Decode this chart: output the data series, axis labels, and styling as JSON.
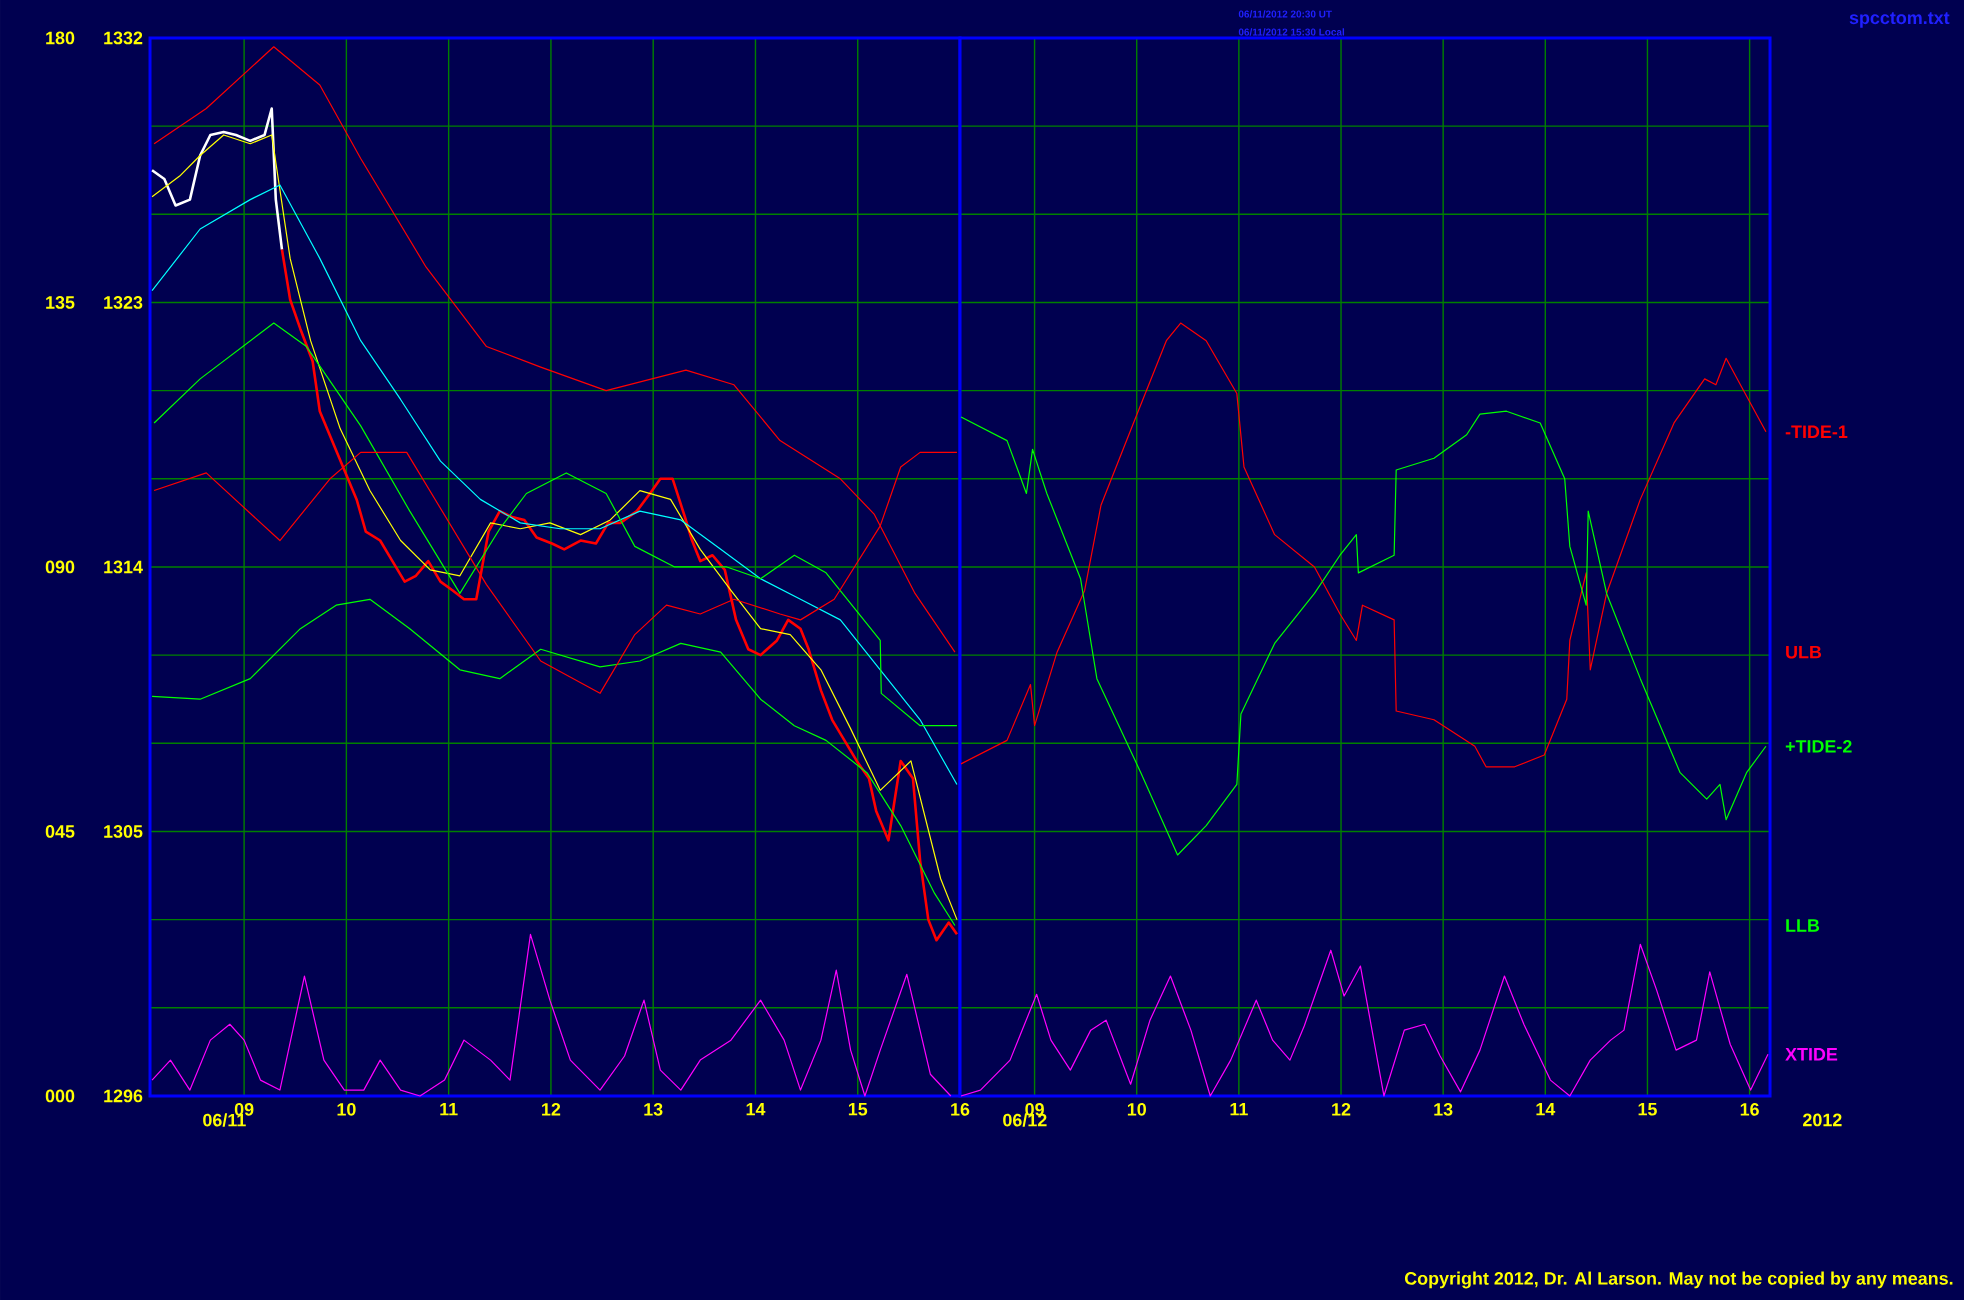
{
  "chart_data": [
    {
      "type": "line",
      "grid": true,
      "xlim": [
        8.08,
        16.0
      ],
      "ylim": [
        1296,
        1332
      ],
      "y2lim": [
        0,
        180
      ],
      "xticks": [
        {
          "value": 9,
          "label": "09"
        },
        10,
        11,
        12,
        13,
        14,
        15,
        16
      ],
      "yticks": [
        1296,
        {
          "value": 1299,
          "label": null
        },
        {
          "value": 1302,
          "label": null
        },
        1305,
        {
          "value": 1308,
          "label": null
        },
        {
          "value": 1311,
          "label": null
        },
        1314,
        {
          "value": 1317,
          "label": null
        },
        {
          "value": 1320,
          "label": null
        },
        1323,
        {
          "value": 1326,
          "label": null
        },
        {
          "value": 1329,
          "label": null
        },
        1332
      ],
      "y2ticks": [
        {
          "value": 0,
          "label": "000"
        },
        {
          "value": 45,
          "label": "045"
        },
        {
          "value": 90,
          "label": "090"
        },
        135,
        180
      ],
      "annotations": [
        "06/11"
      ],
      "series": [
        {
          "color": "#ffffff",
          "x": [
            8.1,
            8.22,
            8.33,
            8.47,
            8.57,
            8.67,
            8.8,
            8.92,
            9.06,
            9.2,
            9.27,
            9.31,
            9.37
          ],
          "values": [
            1327.5,
            1327.2,
            1326.3,
            1326.5,
            1328.0,
            1328.7,
            1328.8,
            1328.7,
            1328.5,
            1328.7,
            1329.6,
            1326.5,
            1324.8
          ]
        },
        {
          "color": "#ff0000",
          "x": [
            9.37,
            9.45,
            9.55,
            9.67,
            9.74,
            9.86,
            9.98,
            10.1,
            10.19,
            10.33,
            10.45,
            10.57,
            10.68,
            10.8,
            10.92,
            11.04,
            11.15,
            11.27,
            11.39,
            11.5,
            11.62,
            11.74,
            11.86,
            12.01,
            12.13,
            12.29,
            12.44,
            12.56,
            12.68,
            12.84,
            12.99,
            13.07,
            13.19,
            13.31,
            13.38,
            13.46,
            13.58,
            13.7,
            13.81,
            13.93,
            14.05,
            14.21,
            14.32,
            14.44,
            14.52,
            14.64,
            14.75,
            14.87,
            14.99,
            15.11,
            15.18,
            15.3,
            15.42,
            15.54,
            15.61,
            15.69,
            15.77,
            15.89,
            15.97
          ],
          "values": [
            1324.8,
            1323.1,
            1322.1,
            1321.0,
            1319.3,
            1318.3,
            1317.3,
            1316.3,
            1315.2,
            1314.9,
            1314.2,
            1313.5,
            1313.7,
            1314.2,
            1313.5,
            1313.2,
            1312.9,
            1312.9,
            1315.2,
            1315.9,
            1315.7,
            1315.6,
            1315.0,
            1314.8,
            1314.6,
            1314.9,
            1314.8,
            1315.5,
            1315.5,
            1315.9,
            1316.6,
            1317.0,
            1317.0,
            1315.7,
            1314.9,
            1314.2,
            1314.4,
            1313.9,
            1312.2,
            1311.2,
            1311.0,
            1311.5,
            1312.2,
            1311.9,
            1311.2,
            1309.8,
            1308.8,
            1308.1,
            1307.4,
            1306.8,
            1305.7,
            1304.7,
            1307.4,
            1306.8,
            1304.0,
            1302.0,
            1301.3,
            1301.9,
            1301.5
          ]
        },
        {
          "color": "#ffff00",
          "x": [
            8.1,
            8.37,
            8.57,
            8.8,
            9.06,
            9.27,
            9.45,
            9.65,
            9.94,
            10.23,
            10.53,
            10.82,
            11.11,
            11.41,
            11.7,
            11.99,
            12.29,
            12.58,
            12.87,
            13.17,
            13.46,
            13.76,
            14.05,
            14.34,
            14.64,
            14.93,
            15.22,
            15.52,
            15.81,
            15.97
          ],
          "values": [
            1326.6,
            1327.3,
            1328.0,
            1328.7,
            1328.4,
            1328.7,
            1324.5,
            1321.7,
            1318.7,
            1316.6,
            1314.9,
            1313.9,
            1313.7,
            1315.5,
            1315.3,
            1315.5,
            1315.1,
            1315.6,
            1316.6,
            1316.3,
            1314.6,
            1313.2,
            1311.9,
            1311.7,
            1310.5,
            1308.5,
            1306.4,
            1307.4,
            1303.4,
            1302.0
          ]
        },
        {
          "color": "#00ffff",
          "x": [
            8.1,
            8.57,
            9.06,
            9.35,
            9.74,
            10.14,
            10.53,
            10.92,
            11.31,
            11.7,
            12.09,
            12.48,
            12.87,
            13.27,
            13.66,
            14.05,
            14.44,
            14.83,
            15.22,
            15.61,
            15.97
          ],
          "values": [
            1323.4,
            1325.5,
            1326.5,
            1327.0,
            1324.5,
            1321.7,
            1319.7,
            1317.6,
            1316.3,
            1315.5,
            1315.3,
            1315.3,
            1315.9,
            1315.6,
            1314.6,
            1313.6,
            1312.9,
            1312.2,
            1310.5,
            1308.8,
            1306.6
          ]
        },
        {
          "color": "#00ff00",
          "x": [
            8.12,
            8.57,
            9.29,
            9.61,
            10.14,
            10.62,
            11.11,
            11.5,
            11.76,
            12.15,
            12.54,
            12.82,
            13.21,
            13.72,
            14.05,
            14.38,
            14.69,
            15.22,
            15.23,
            15.61,
            15.97
          ],
          "values": [
            1318.9,
            1320.4,
            1322.3,
            1321.5,
            1318.8,
            1315.9,
            1313.1,
            1315.3,
            1316.5,
            1317.2,
            1316.5,
            1314.7,
            1314.0,
            1314.0,
            1313.6,
            1314.4,
            1313.8,
            1311.5,
            1309.7,
            1308.6,
            1308.6
          ]
        },
        {
          "name": "LLB",
          "color": "#00ff00",
          "x": [
            8.1,
            8.57,
            9.06,
            9.55,
            9.9,
            10.23,
            10.62,
            11.11,
            11.5,
            11.9,
            12.48,
            12.87,
            13.27,
            13.66,
            14.05,
            14.38,
            14.69,
            15.09,
            15.42,
            15.75,
            15.95
          ],
          "values": [
            1309.6,
            1309.5,
            1310.2,
            1311.9,
            1312.7,
            1312.9,
            1311.9,
            1310.5,
            1310.2,
            1311.2,
            1310.6,
            1310.8,
            1311.4,
            1311.1,
            1309.5,
            1308.6,
            1308.1,
            1307.0,
            1305.2,
            1302.9,
            1301.8
          ]
        },
        {
          "name": "ULB",
          "color": "#ff0000",
          "x": [
            8.12,
            8.63,
            9.29,
            9.74,
            10.14,
            10.78,
            11.37,
            11.9,
            12.54,
            13.32,
            13.79,
            14.24,
            14.83,
            15.16,
            15.56,
            15.95
          ],
          "values": [
            1328.4,
            1329.6,
            1331.7,
            1330.4,
            1327.9,
            1324.2,
            1321.5,
            1320.8,
            1320.0,
            1320.7,
            1320.2,
            1318.3,
            1317.0,
            1315.8,
            1313.1,
            1311.1
          ]
        },
        {
          "color": "#ff0000",
          "x": [
            8.12,
            8.63,
            9.35,
            9.84,
            10.14,
            10.59,
            11.37,
            11.9,
            12.48,
            12.82,
            13.13,
            13.46,
            13.79,
            14.24,
            14.44,
            14.77,
            15.22,
            15.42,
            15.61,
            15.97
          ],
          "values": [
            1316.6,
            1317.2,
            1314.9,
            1317.0,
            1317.9,
            1317.9,
            1313.4,
            1310.8,
            1309.7,
            1311.7,
            1312.7,
            1312.4,
            1312.9,
            1312.4,
            1312.2,
            1312.9,
            1315.4,
            1317.4,
            1317.9,
            1317.9
          ]
        },
        {
          "color": "#ff00ff",
          "axis": "y2",
          "x": [
            8.1,
            8.28,
            8.47,
            8.67,
            8.86,
            9.0,
            9.16,
            9.35,
            9.59,
            9.78,
            9.98,
            10.17,
            10.33,
            10.53,
            10.72,
            10.96,
            11.15,
            11.41,
            11.6,
            11.8,
            11.99,
            12.19,
            12.48,
            12.72,
            12.91,
            13.07,
            13.27,
            13.46,
            13.76,
            14.05,
            14.28,
            14.44,
            14.64,
            14.79,
            14.93,
            15.07,
            15.22,
            15.48,
            15.71,
            15.91
          ],
          "values": [
            2.7,
            6.1,
            1.0,
            9.5,
            12.2,
            9.5,
            2.7,
            1.0,
            20.4,
            6.1,
            1.0,
            1.0,
            6.1,
            1.0,
            0,
            2.7,
            9.5,
            6.1,
            2.7,
            27.5,
            16.3,
            6.1,
            1.0,
            6.8,
            16.3,
            4.4,
            1.0,
            6.1,
            9.5,
            16.3,
            9.5,
            1.0,
            9.5,
            21.4,
            7.8,
            0,
            7.8,
            20.7,
            3.7,
            0
          ]
        }
      ]
    },
    {
      "type": "line",
      "grid": true,
      "tick_labels": "x",
      "xlim": [
        8.27,
        16.2
      ],
      "ylim": [
        1296,
        1332
      ],
      "y2lim": [
        0,
        180
      ],
      "xticks": [
        {
          "value": 9,
          "label": "09"
        },
        10,
        11,
        12,
        13,
        14,
        15,
        16
      ],
      "yticks": [
        1296,
        1299,
        1302,
        1305,
        1308,
        1311,
        1314,
        1317,
        1320,
        1323,
        1326,
        1329,
        1332
      ],
      "annotations": [
        "06/12",
        "2012",
        "06/11/2012 20:30 UT",
        "06/11/2012 15:30 Local",
        "spcctom.txt",
        "Copyright 2012, Dr. Al Larson. May not be copied by any means."
      ],
      "series": [
        {
          "name": "-TIDE-1",
          "color": "#ff0000",
          "x": [
            8.28,
            8.73,
            8.96,
            9.0,
            9.22,
            9.49,
            9.65,
            9.98,
            10.29,
            10.43,
            10.68,
            10.98,
            11.05,
            11.35,
            11.74,
            11.99,
            12.15,
            12.21,
            12.52,
            12.54,
            12.91,
            13.31,
            13.42,
            13.7,
            13.99,
            14.21,
            14.24,
            14.4,
            14.44,
            14.6,
            14.93,
            15.26,
            15.56,
            15.67,
            15.77,
            15.91,
            16.16
          ],
          "values": [
            1307.3,
            1308.1,
            1310.0,
            1308.6,
            1311.1,
            1313.2,
            1316.1,
            1319.0,
            1321.7,
            1322.3,
            1321.7,
            1319.9,
            1317.4,
            1315.1,
            1314.0,
            1312.4,
            1311.5,
            1312.7,
            1312.2,
            1309.1,
            1308.8,
            1307.9,
            1307.2,
            1307.2,
            1307.6,
            1309.5,
            1311.5,
            1313.8,
            1310.5,
            1313.1,
            1316.3,
            1318.9,
            1320.4,
            1320.2,
            1321.1,
            1320.2,
            1318.6
          ]
        },
        {
          "name": "+TIDE-2",
          "color": "#00ff00",
          "x": [
            8.28,
            8.73,
            8.92,
            8.98,
            9.12,
            9.45,
            9.61,
            10.04,
            10.4,
            10.68,
            10.98,
            11.02,
            11.35,
            11.74,
            11.99,
            12.15,
            12.17,
            12.52,
            12.54,
            12.91,
            13.23,
            13.36,
            13.62,
            13.95,
            14.19,
            14.24,
            14.4,
            14.42,
            14.6,
            14.93,
            15.32,
            15.58,
            15.71,
            15.77,
            15.97,
            16.16
          ],
          "values": [
            1319.1,
            1318.3,
            1316.5,
            1318.0,
            1316.5,
            1313.6,
            1310.2,
            1307.0,
            1304.2,
            1305.2,
            1306.6,
            1309.0,
            1311.4,
            1313.1,
            1314.4,
            1315.1,
            1313.8,
            1314.4,
            1317.3,
            1317.7,
            1318.5,
            1319.2,
            1319.3,
            1318.9,
            1317.0,
            1314.7,
            1312.7,
            1315.9,
            1313.1,
            1310.2,
            1307.0,
            1306.1,
            1306.6,
            1305.4,
            1307.0,
            1307.9
          ]
        },
        {
          "name": "XTIDE",
          "color": "#ff00ff",
          "axis": "y2",
          "x": [
            8.28,
            8.47,
            8.76,
            9.02,
            9.16,
            9.35,
            9.55,
            9.7,
            9.94,
            10.13,
            10.33,
            10.53,
            10.72,
            10.92,
            11.17,
            11.33,
            11.5,
            11.64,
            11.9,
            12.03,
            12.19,
            12.42,
            12.62,
            12.82,
            12.97,
            13.17,
            13.36,
            13.6,
            13.79,
            14.05,
            14.24,
            14.44,
            14.64,
            14.77,
            14.93,
            15.09,
            15.28,
            15.48,
            15.61,
            15.81,
            16.01,
            16.18
          ],
          "values": [
            0,
            1.0,
            6.1,
            17.3,
            9.5,
            4.4,
            11.2,
            12.9,
            2.0,
            12.9,
            20.4,
            11.2,
            0,
            6.1,
            16.3,
            9.5,
            6.1,
            11.9,
            24.8,
            17.0,
            22.1,
            0,
            11.2,
            12.2,
            6.8,
            0.7,
            7.8,
            20.4,
            12.2,
            2.7,
            0,
            6.1,
            9.5,
            11.2,
            25.8,
            18.0,
            7.8,
            9.5,
            21.1,
            8.8,
            1.0,
            7.1
          ]
        }
      ]
    }
  ]
}
